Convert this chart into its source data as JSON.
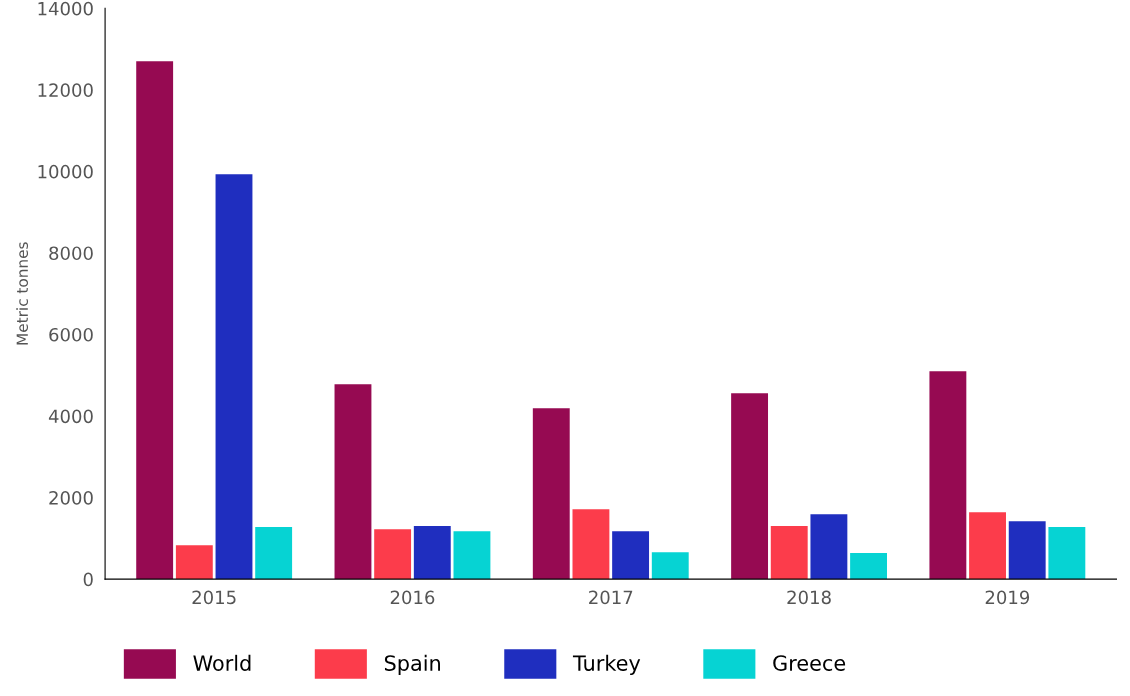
{
  "chart_data": {
    "type": "bar",
    "ylabel": "Metric tonnes",
    "categories": [
      "2015",
      "2016",
      "2017",
      "2018",
      "2019"
    ],
    "series": [
      {
        "name": "World",
        "color": "#960a52",
        "values": [
          12700,
          4780,
          4190,
          4560,
          5100
        ]
      },
      {
        "name": "Spain",
        "color": "#fc3c4b",
        "values": [
          830,
          1225,
          1715,
          1300,
          1640
        ]
      },
      {
        "name": "Turkey",
        "color": "#1f2ebf",
        "values": [
          9930,
          1300,
          1175,
          1590,
          1420
        ]
      },
      {
        "name": "Greece",
        "color": "#06d3d3",
        "values": [
          1275,
          1175,
          660,
          640,
          1275
        ]
      }
    ],
    "ylim": [
      0,
      14000
    ],
    "yticks": [
      0,
      2000,
      4000,
      6000,
      8000,
      10000,
      12000,
      14000
    ],
    "grid": false,
    "legend": "bottom"
  }
}
